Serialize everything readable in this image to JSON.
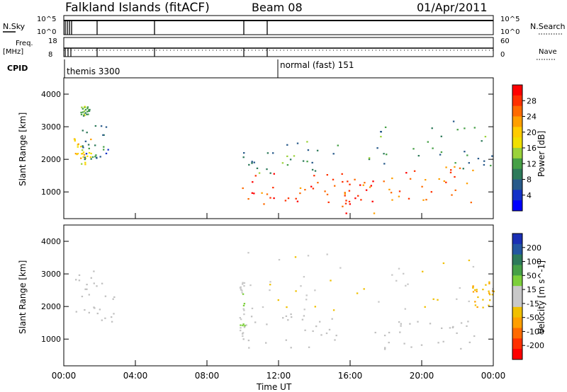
{
  "header": {
    "station": "Falkland Islands (fitACF)",
    "beam": "Beam 08",
    "date": "01/Apr/2011"
  },
  "strips": {
    "nsky_label": "N.Sky",
    "nsky_ticks": [
      "10^5",
      "10^0"
    ],
    "nsearch_label": "N.Search",
    "nsearch_ticks": [
      "10^5",
      "10^0"
    ],
    "freq_label": "Freq.",
    "freq_unit": "[MHz]",
    "freq_ticks": [
      "18",
      "8"
    ],
    "nave_label": "Nave",
    "nave_ticks": [
      "60",
      "0"
    ],
    "cpid_label": "CPID",
    "cpid_entries": [
      {
        "text": "themis 3300",
        "time_h": 0.0
      },
      {
        "text": "normal (fast) 151",
        "time_h": 12.0
      }
    ]
  },
  "panels": {
    "ylabel": "Slant Range [km]",
    "power_colorbar": {
      "label": "Power [dB]",
      "ticks": [
        "28",
        "24",
        "20",
        "16",
        "12",
        "8",
        "4"
      ],
      "colors": [
        "#ff0000",
        "#ff3000",
        "#ff6a00",
        "#ff9f00",
        "#ffcc00",
        "#f0e000",
        "#9ad23a",
        "#46a046",
        "#2d7a5a",
        "#285a8a",
        "#1432c8",
        "#0000ff"
      ]
    },
    "velocity_colorbar": {
      "label": "Velocity [m s^-1]",
      "ticks": [
        "200",
        "100",
        "50",
        "15",
        "-15",
        "-50",
        "-100",
        "-200"
      ],
      "colors": [
        "#1a2fb4",
        "#2356a0",
        "#2d7a5a",
        "#46a046",
        "#7ccf3a",
        "#c8c8c8",
        "#c8c8c8",
        "#f0c000",
        "#ff9f00",
        "#ff6a00",
        "#ff3000",
        "#ff0000"
      ]
    },
    "ground_scatter_color": "#c0c0c0"
  },
  "axis": {
    "xlabel": "Time UT",
    "xticks": [
      "00:00",
      "04:00",
      "08:00",
      "12:00",
      "16:00",
      "20:00",
      "00:00"
    ],
    "yticks": [
      "1000",
      "2000",
      "3000",
      "4000"
    ]
  },
  "chart_data": {
    "type": "heatmap",
    "title": "Falkland Islands (fitACF)",
    "subtitle": "Beam 08  01/Apr/2011",
    "xlabel": "Time UT",
    "ylabel": "Slant Range [km]",
    "xlim_hours": [
      0,
      24
    ],
    "ylim_km": [
      180,
      4500
    ],
    "panels": [
      {
        "name": "Power",
        "colorbar_label": "Power [dB]",
        "range": [
          0,
          30
        ],
        "regions": [
          {
            "t0": 0.5,
            "t1": 1.5,
            "r0": 1800,
            "r1": 2700,
            "value": 18
          },
          {
            "t0": 1.0,
            "t1": 2.6,
            "r0": 2000,
            "r1": 3200,
            "value": 8
          },
          {
            "t0": 0.9,
            "t1": 1.4,
            "r0": 3350,
            "r1": 3650,
            "value": 12
          },
          {
            "t0": 9.8,
            "t1": 15.3,
            "r0": 600,
            "r1": 1600,
            "value": 26
          },
          {
            "t0": 10.0,
            "t1": 15.3,
            "r0": 1600,
            "r1": 2600,
            "value": 10
          },
          {
            "t0": 15.5,
            "t1": 17.3,
            "r0": 350,
            "r1": 1600,
            "value": 26
          },
          {
            "t0": 17.3,
            "t1": 23.0,
            "r0": 700,
            "r1": 1800,
            "value": 24
          },
          {
            "t0": 17.0,
            "t1": 24.0,
            "r0": 1700,
            "r1": 3300,
            "value": 9
          }
        ]
      },
      {
        "name": "Velocity",
        "colorbar_label": "Velocity [m s^-1]",
        "range": [
          -200,
          200
        ],
        "regions": [
          {
            "t0": 0.6,
            "t1": 2.8,
            "r0": 1500,
            "r1": 3200,
            "value": 0,
            "ground_scatter": true
          },
          {
            "t0": 9.9,
            "t1": 15.3,
            "r0": 750,
            "r1": 1800,
            "value": 0,
            "ground_scatter": true
          },
          {
            "t0": 17.3,
            "t1": 23.0,
            "r0": 700,
            "r1": 1600,
            "value": 0,
            "ground_scatter": true
          },
          {
            "t0": 9.8,
            "t1": 10.1,
            "r0": 1100,
            "r1": 2800,
            "value": 30
          },
          {
            "t0": 22.8,
            "t1": 24.0,
            "r0": 1900,
            "r1": 2800,
            "value": -60
          },
          {
            "t0": 10.0,
            "t1": 23.0,
            "r0": 1900,
            "r1": 3700,
            "value": -20
          }
        ]
      }
    ],
    "annotations": [
      "themis 3300",
      "normal (fast) 151"
    ]
  }
}
